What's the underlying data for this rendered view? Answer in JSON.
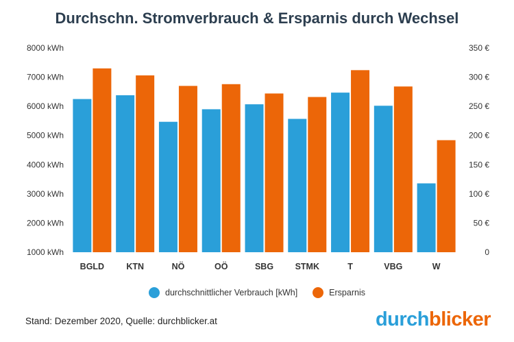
{
  "title": "Durchschn. Stromverbrauch & Ersparnis durch Wechsel",
  "footer": "Stand: Dezember 2020, Quelle: durchblicker.at",
  "logo": {
    "part1": "durch",
    "part2": "blicker"
  },
  "colors": {
    "series1": "#2a9fd9",
    "series2": "#ec6608"
  },
  "chart_data": {
    "type": "bar",
    "categories": [
      "BGLD",
      "KTN",
      "NÖ",
      "OÖ",
      "SBG",
      "STMK",
      "T",
      "VBG",
      "W"
    ],
    "series": [
      {
        "name": "durchschnittlicher Verbrauch [kWh]",
        "axis": "left",
        "values": [
          6250,
          6380,
          5470,
          5900,
          6070,
          5570,
          6470,
          6020,
          3360
        ]
      },
      {
        "name": "Ersparnis",
        "axis": "right",
        "values": [
          315,
          303,
          285,
          288,
          272,
          266,
          312,
          284,
          192
        ]
      }
    ],
    "y_left": {
      "min": 1000,
      "max": 8000,
      "ticks": [
        "1000 kWh",
        "2000 kWh",
        "3000 kWh",
        "4000 kWh",
        "5000 kWh",
        "6000 kWh",
        "7000 kWh",
        "8000 kWh"
      ]
    },
    "y_right": {
      "min": 0,
      "max": 350,
      "ticks": [
        "0",
        "50 €",
        "100 €",
        "150 €",
        "200 €",
        "250 €",
        "300 €",
        "350 €"
      ]
    },
    "legend_position": "bottom-center",
    "grid": false
  }
}
